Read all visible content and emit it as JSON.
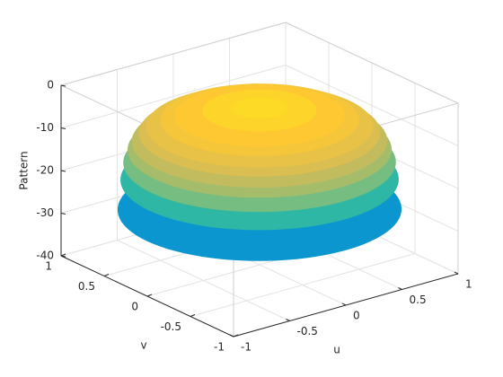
{
  "chart_data": {
    "type": "surface",
    "xlabel": "u",
    "ylabel": "v",
    "zlabel": "Pattern",
    "xlim": [
      -1,
      1
    ],
    "ylim": [
      -1,
      1
    ],
    "zlim": [
      -40,
      0
    ],
    "xticks": [
      -1,
      -0.5,
      0,
      0.5,
      1
    ],
    "yticks": [
      -1,
      -0.5,
      0,
      0.5,
      1
    ],
    "zticks": [
      -40,
      -30,
      -20,
      -10,
      0
    ],
    "grid": true,
    "colormap": [
      "#352a87",
      "#0f5cdd",
      "#1481d6",
      "#06a4ca",
      "#2eb7a4",
      "#87bf77",
      "#d1bb59",
      "#fec832",
      "#f9fb0e"
    ],
    "radius": [
      0,
      0.2,
      0.4,
      0.6,
      0.7,
      0.8,
      0.85,
      0.9,
      0.93,
      0.96,
      0.98,
      1
    ],
    "values": [
      -3,
      -3.2,
      -3.8,
      -5,
      -6,
      -7.5,
      -9,
      -11,
      -13,
      -16,
      -20,
      -27
    ]
  }
}
